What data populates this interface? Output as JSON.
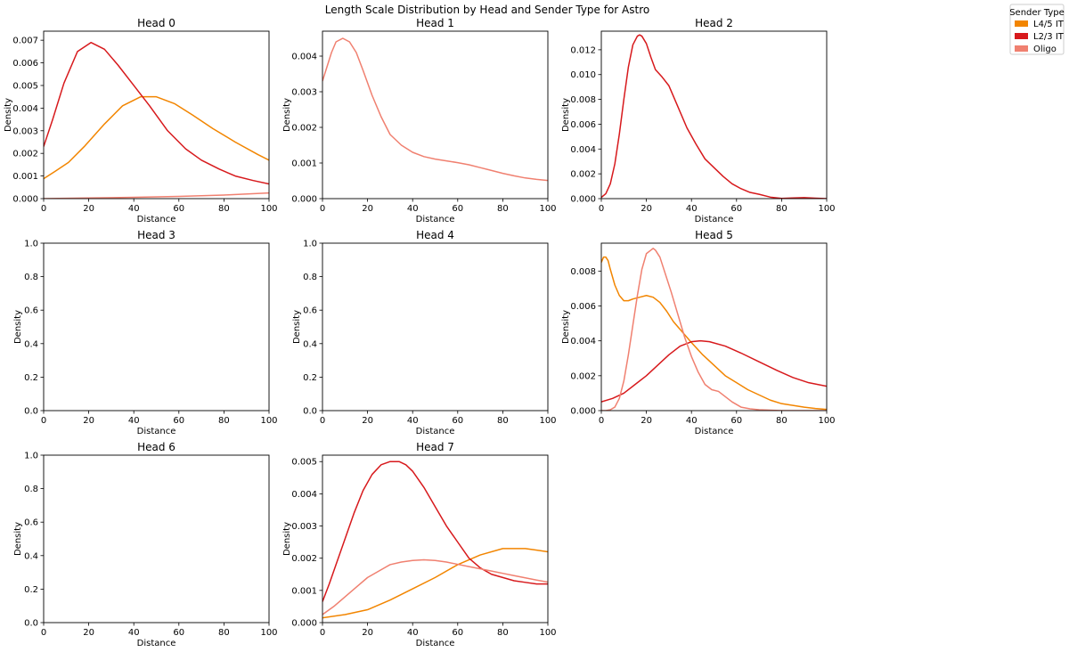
{
  "title": "Length Scale Distribution by Head and Sender Type for Astro",
  "legend": {
    "title": "Sender Type",
    "placement": "upper-right-outside",
    "items": [
      {
        "label": "L4/5 IT",
        "color": "#f28500"
      },
      {
        "label": "L2/3 IT",
        "color": "#d7191c"
      },
      {
        "label": "Oligo",
        "color": "#f08070"
      }
    ]
  },
  "chart_data": [
    {
      "type": "line",
      "title": "Head 0",
      "xlabel": "Distance",
      "ylabel": "Density",
      "xlim": [
        0,
        100
      ],
      "ylim": [
        0,
        0.0074
      ],
      "xticks": [
        "0",
        "20",
        "40",
        "60",
        "80",
        "100"
      ],
      "yticks": [
        "0.000",
        "0.001",
        "0.002",
        "0.003",
        "0.004",
        "0.005",
        "0.006",
        "0.007"
      ],
      "series": [
        {
          "name": "L4/5 IT",
          "color": "#f28500",
          "x": [
            0,
            5,
            11,
            18,
            27,
            35,
            43,
            50,
            58,
            66,
            75,
            85,
            95,
            100
          ],
          "y": [
            0.00088,
            0.0012,
            0.0016,
            0.0023,
            0.0033,
            0.0041,
            0.0045,
            0.0045,
            0.0042,
            0.0037,
            0.0031,
            0.0025,
            0.00195,
            0.0017
          ]
        },
        {
          "name": "L2/3 IT",
          "color": "#d7191c",
          "x": [
            0,
            4,
            9,
            15,
            21,
            27,
            33,
            40,
            47,
            55,
            63,
            70,
            78,
            85,
            93,
            100
          ],
          "y": [
            0.0023,
            0.0035,
            0.0051,
            0.0065,
            0.0069,
            0.0066,
            0.0059,
            0.005,
            0.0041,
            0.003,
            0.0022,
            0.0017,
            0.0013,
            0.001,
            0.0008,
            0.00065
          ]
        },
        {
          "name": "Oligo",
          "color": "#f08070",
          "x": [
            0,
            20,
            40,
            60,
            80,
            100
          ],
          "y": [
            0.0,
            3e-05,
            6e-05,
            0.0001,
            0.00016,
            0.00025
          ]
        }
      ]
    },
    {
      "type": "line",
      "title": "Head 1",
      "xlabel": "Distance",
      "ylabel": "Density",
      "xlim": [
        0,
        100
      ],
      "ylim": [
        0,
        0.0047
      ],
      "xticks": [
        "0",
        "20",
        "40",
        "60",
        "80",
        "100"
      ],
      "yticks": [
        "0.000",
        "0.001",
        "0.002",
        "0.003",
        "0.004"
      ],
      "series": [
        {
          "name": "Oligo",
          "color": "#f08070",
          "x": [
            0,
            2,
            4,
            6,
            9,
            12,
            15,
            18,
            22,
            26,
            30,
            35,
            40,
            45,
            50,
            55,
            60,
            65,
            70,
            75,
            80,
            85,
            90,
            95,
            100
          ],
          "y": [
            0.0033,
            0.0037,
            0.0041,
            0.0044,
            0.0045,
            0.0044,
            0.0041,
            0.0036,
            0.0029,
            0.0023,
            0.0018,
            0.0015,
            0.0013,
            0.00118,
            0.00111,
            0.00106,
            0.00101,
            0.00095,
            0.00087,
            0.00079,
            0.00071,
            0.00064,
            0.00058,
            0.00054,
            0.00051
          ]
        }
      ]
    },
    {
      "type": "line",
      "title": "Head 2",
      "xlabel": "Distance",
      "ylabel": "Density",
      "xlim": [
        0,
        100
      ],
      "ylim": [
        0,
        0.0135
      ],
      "xticks": [
        "0",
        "20",
        "40",
        "60",
        "80",
        "100"
      ],
      "yticks": [
        "0.000",
        "0.002",
        "0.004",
        "0.006",
        "0.008",
        "0.010",
        "0.012"
      ],
      "series": [
        {
          "name": "L2/3 IT",
          "color": "#d7191c",
          "x": [
            0,
            2,
            4,
            6,
            8,
            10,
            12,
            14,
            16,
            17,
            18,
            20,
            22,
            24,
            27,
            30,
            34,
            38,
            42,
            46,
            50,
            54,
            58,
            62,
            66,
            70,
            75,
            80,
            85,
            90,
            95,
            100
          ],
          "y": [
            0.0001,
            0.0004,
            0.0012,
            0.0028,
            0.0052,
            0.008,
            0.0106,
            0.0124,
            0.0131,
            0.0132,
            0.0131,
            0.0125,
            0.0114,
            0.0104,
            0.0098,
            0.0091,
            0.0074,
            0.0057,
            0.0044,
            0.0032,
            0.0025,
            0.0018,
            0.0012,
            0.0008,
            0.0005,
            0.00035,
            0.00012,
            2e-05,
            5e-05,
            8e-05,
            4e-05,
            0.0
          ]
        }
      ]
    },
    {
      "type": "line",
      "title": "Head 3",
      "xlabel": "Distance",
      "ylabel": "Density",
      "xlim": [
        0,
        100
      ],
      "ylim": [
        0,
        1
      ],
      "xticks": [
        "0",
        "20",
        "40",
        "60",
        "80",
        "100"
      ],
      "yticks": [
        "0.0",
        "0.2",
        "0.4",
        "0.6",
        "0.8",
        "1.0"
      ],
      "series": []
    },
    {
      "type": "line",
      "title": "Head 4",
      "xlabel": "Distance",
      "ylabel": "Density",
      "xlim": [
        0,
        100
      ],
      "ylim": [
        0,
        1
      ],
      "xticks": [
        "0",
        "20",
        "40",
        "60",
        "80",
        "100"
      ],
      "yticks": [
        "0.0",
        "0.2",
        "0.4",
        "0.6",
        "0.8",
        "1.0"
      ],
      "series": []
    },
    {
      "type": "line",
      "title": "Head 5",
      "xlabel": "Distance",
      "ylabel": "Density",
      "xlim": [
        0,
        100
      ],
      "ylim": [
        0,
        0.0096
      ],
      "xticks": [
        "0",
        "20",
        "40",
        "60",
        "80",
        "100"
      ],
      "yticks": [
        "0.000",
        "0.002",
        "0.004",
        "0.006",
        "0.008"
      ],
      "series": [
        {
          "name": "L4/5 IT",
          "color": "#f28500",
          "x": [
            0,
            1,
            2,
            3,
            4,
            6,
            8,
            10,
            12,
            14,
            17,
            20,
            23,
            26,
            29,
            32,
            36,
            40,
            45,
            50,
            55,
            60,
            65,
            70,
            75,
            80,
            85,
            90,
            95,
            100
          ],
          "y": [
            0.0085,
            0.0088,
            0.0088,
            0.0086,
            0.0081,
            0.0072,
            0.0066,
            0.0063,
            0.0063,
            0.0064,
            0.0065,
            0.0066,
            0.0065,
            0.0062,
            0.0057,
            0.0051,
            0.0045,
            0.0039,
            0.0032,
            0.0026,
            0.002,
            0.0016,
            0.0012,
            0.0009,
            0.0006,
            0.0004,
            0.0003,
            0.0002,
            0.00012,
            7e-05
          ]
        },
        {
          "name": "L2/3 IT",
          "color": "#d7191c",
          "x": [
            0,
            5,
            10,
            15,
            20,
            25,
            30,
            35,
            40,
            44,
            48,
            55,
            62,
            70,
            78,
            85,
            92,
            100
          ],
          "y": [
            0.0005,
            0.0007,
            0.001,
            0.0015,
            0.002,
            0.0026,
            0.0032,
            0.0037,
            0.00395,
            0.004,
            0.00395,
            0.0037,
            0.0033,
            0.0028,
            0.0023,
            0.0019,
            0.0016,
            0.0014
          ]
        },
        {
          "name": "Oligo",
          "color": "#f08070",
          "x": [
            0,
            2,
            4,
            6,
            8,
            10,
            12,
            14,
            16,
            18,
            20,
            22,
            23,
            24,
            26,
            28,
            31,
            34,
            37,
            40,
            43,
            46,
            49,
            52,
            55,
            58,
            62,
            66,
            70,
            80,
            90,
            100
          ],
          "y": [
            0.0,
            0.0,
            5e-05,
            0.0002,
            0.0007,
            0.0017,
            0.0032,
            0.0049,
            0.0066,
            0.0081,
            0.009,
            0.0092,
            0.0093,
            0.0092,
            0.0088,
            0.008,
            0.0068,
            0.0055,
            0.0042,
            0.0031,
            0.0022,
            0.0015,
            0.0012,
            0.0011,
            0.0008,
            0.0005,
            0.0002,
            0.0001,
            5e-05,
            0.0,
            0.0,
            0.0
          ]
        }
      ]
    },
    {
      "type": "line",
      "title": "Head 6",
      "xlabel": "Distance",
      "ylabel": "Density",
      "xlim": [
        0,
        100
      ],
      "ylim": [
        0,
        1
      ],
      "xticks": [
        "0",
        "20",
        "40",
        "60",
        "80",
        "100"
      ],
      "yticks": [
        "0.0",
        "0.2",
        "0.4",
        "0.6",
        "0.8",
        "1.0"
      ],
      "series": []
    },
    {
      "type": "line",
      "title": "Head 7",
      "xlabel": "Distance",
      "ylabel": "Density",
      "xlim": [
        0,
        100
      ],
      "ylim": [
        0,
        0.0052
      ],
      "xticks": [
        "0",
        "20",
        "40",
        "60",
        "80",
        "100"
      ],
      "yticks": [
        "0.000",
        "0.001",
        "0.002",
        "0.003",
        "0.004",
        "0.005"
      ],
      "series": [
        {
          "name": "L4/5 IT",
          "color": "#f28500",
          "x": [
            0,
            10,
            20,
            30,
            40,
            50,
            60,
            70,
            80,
            85,
            90,
            95,
            100
          ],
          "y": [
            0.00015,
            0.00025,
            0.0004,
            0.0007,
            0.00105,
            0.0014,
            0.0018,
            0.0021,
            0.0023,
            0.0023,
            0.0023,
            0.00225,
            0.0022
          ]
        },
        {
          "name": "L2/3 IT",
          "color": "#d7191c",
          "x": [
            0,
            3,
            6,
            10,
            14,
            18,
            22,
            26,
            30,
            34,
            37,
            40,
            45,
            50,
            55,
            60,
            65,
            70,
            75,
            80,
            85,
            90,
            95,
            100
          ],
          "y": [
            0.00065,
            0.0012,
            0.0018,
            0.0026,
            0.0034,
            0.0041,
            0.0046,
            0.0049,
            0.005,
            0.005,
            0.0049,
            0.0047,
            0.0042,
            0.0036,
            0.003,
            0.0025,
            0.002,
            0.0017,
            0.0015,
            0.0014,
            0.0013,
            0.00125,
            0.0012,
            0.0012
          ]
        },
        {
          "name": "Oligo",
          "color": "#f08070",
          "x": [
            0,
            5,
            10,
            15,
            20,
            25,
            30,
            35,
            40,
            45,
            50,
            55,
            60,
            65,
            70,
            75,
            80,
            85,
            90,
            95,
            100
          ],
          "y": [
            0.00025,
            0.0005,
            0.0008,
            0.0011,
            0.0014,
            0.0016,
            0.0018,
            0.00188,
            0.00193,
            0.00195,
            0.00193,
            0.00188,
            0.00181,
            0.00174,
            0.00167,
            0.0016,
            0.00153,
            0.00146,
            0.00139,
            0.00132,
            0.00126
          ]
        }
      ]
    }
  ]
}
